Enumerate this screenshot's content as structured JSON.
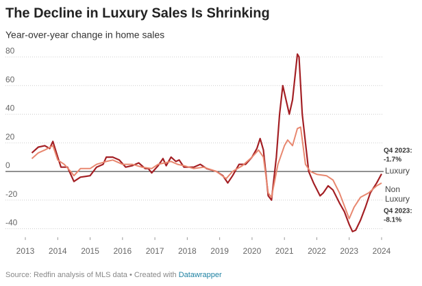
{
  "chart_data": {
    "type": "line",
    "title": "The Decline in Luxury Sales Is Shrinking",
    "subtitle": "Year-over-year change in home sales",
    "source": "Source: Redfin analysis of MLS data • Created with",
    "credit": "Datawrapper",
    "xlim": [
      2013,
      2024
    ],
    "xticks": [
      2013,
      2014,
      2015,
      2016,
      2017,
      2018,
      2019,
      2020,
      2021,
      2022,
      2023,
      2024
    ],
    "ylim": [
      -45,
      85
    ],
    "yticks": [
      -40,
      -20,
      0,
      20,
      40,
      60,
      80
    ],
    "grid": true,
    "series": [
      {
        "name": "Luxury",
        "color": "#a31f24",
        "annotation": [
          "Q4 2023:",
          "-1.7%"
        ],
        "x": [
          2013.2,
          2013.4,
          2013.6,
          2013.75,
          2013.85,
          2014.0,
          2014.1,
          2014.3,
          2014.5,
          2014.7,
          2015.0,
          2015.2,
          2015.4,
          2015.5,
          2015.7,
          2015.9,
          2016.1,
          2016.3,
          2016.5,
          2016.7,
          2016.8,
          2016.9,
          2017.1,
          2017.25,
          2017.35,
          2017.5,
          2017.65,
          2017.75,
          2017.9,
          2018.2,
          2018.4,
          2018.6,
          2018.9,
          2019.1,
          2019.25,
          2019.4,
          2019.6,
          2019.8,
          2020.0,
          2020.15,
          2020.25,
          2020.35,
          2020.5,
          2020.6,
          2020.75,
          2020.85,
          2020.95,
          2021.05,
          2021.15,
          2021.25,
          2021.4,
          2021.45,
          2021.55,
          2021.75,
          2021.9,
          2022.1,
          2022.2,
          2022.35,
          2022.5,
          2022.7,
          2022.85,
          2023.0,
          2023.1,
          2023.2,
          2023.35,
          2023.5,
          2023.65,
          2023.85,
          2024.0
        ],
        "values": [
          13,
          17,
          18,
          16,
          21,
          10,
          3,
          3,
          -7,
          -4,
          -3,
          3,
          5,
          10,
          10,
          8,
          3,
          4,
          6,
          2,
          2,
          -1,
          4,
          9,
          4,
          10,
          7,
          8,
          3,
          3,
          5,
          2,
          0,
          -3,
          -8,
          -3,
          5,
          5,
          10,
          16,
          23,
          15,
          -17,
          -20,
          10,
          40,
          60,
          50,
          40,
          50,
          82,
          80,
          40,
          0,
          -8,
          -17,
          -15,
          -10,
          -13,
          -22,
          -28,
          -37,
          -42,
          -41,
          -34,
          -25,
          -15,
          -8,
          -1.7
        ]
      },
      {
        "name": "Non Luxury",
        "color": "#e8876f",
        "annotation": [
          "Q4 2023:",
          "-8.1%"
        ],
        "x": [
          2013.2,
          2013.4,
          2013.6,
          2013.85,
          2014.0,
          2014.2,
          2014.4,
          2014.5,
          2014.7,
          2015.0,
          2015.2,
          2015.5,
          2015.7,
          2016.0,
          2016.3,
          2016.6,
          2016.9,
          2017.1,
          2017.3,
          2017.5,
          2017.7,
          2017.9,
          2018.2,
          2018.5,
          2018.9,
          2019.2,
          2019.4,
          2019.7,
          2020.0,
          2020.2,
          2020.35,
          2020.5,
          2020.6,
          2020.8,
          2021.0,
          2021.1,
          2021.25,
          2021.4,
          2021.5,
          2021.65,
          2021.8,
          2022.0,
          2022.3,
          2022.5,
          2022.7,
          2022.9,
          2023.0,
          2023.15,
          2023.35,
          2023.6,
          2023.85,
          2024.0
        ],
        "values": [
          9,
          13,
          15,
          18,
          8,
          5,
          0,
          -3,
          2,
          2,
          5,
          7,
          8,
          5,
          5,
          3,
          2,
          5,
          6,
          7,
          5,
          4,
          2,
          3,
          0,
          -5,
          0,
          4,
          10,
          15,
          10,
          -15,
          -18,
          5,
          18,
          22,
          18,
          30,
          31,
          5,
          0,
          -2,
          -3,
          -6,
          -15,
          -27,
          -33,
          -25,
          -18,
          -15,
          -10,
          -8.1
        ]
      }
    ]
  }
}
